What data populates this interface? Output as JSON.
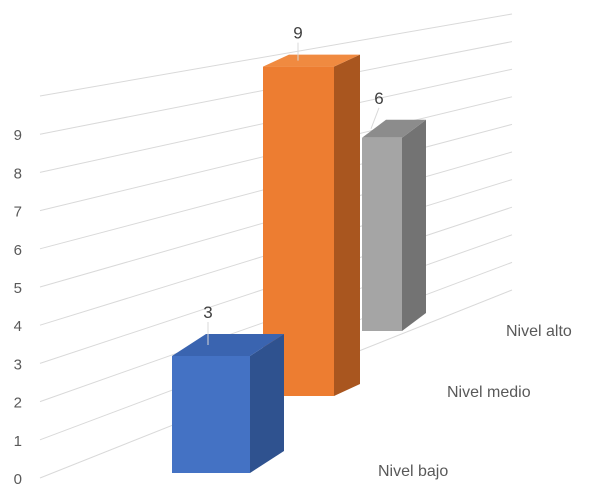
{
  "chart_data": {
    "type": "bar",
    "style": "3d-column",
    "categories": [
      "Nivel bajo",
      "Nivel medio",
      "Nivel alto"
    ],
    "values": [
      3,
      9,
      6
    ],
    "y_ticks": [
      "0",
      "1",
      "2",
      "3",
      "4",
      "5",
      "6",
      "7",
      "8",
      "9"
    ],
    "ylim": [
      0,
      10
    ],
    "grid": true,
    "legend": "none",
    "colors": {
      "Nivel bajo": {
        "front": "#4472c4",
        "side": "#2f528f",
        "top": "#3a64b0"
      },
      "Nivel medio": {
        "front": "#ed7d31",
        "side": "#a9561f",
        "top": "#f08a40"
      },
      "Nivel alto": {
        "front": "#a5a5a5",
        "side": "#737373",
        "top": "#8c8c8c"
      }
    }
  }
}
